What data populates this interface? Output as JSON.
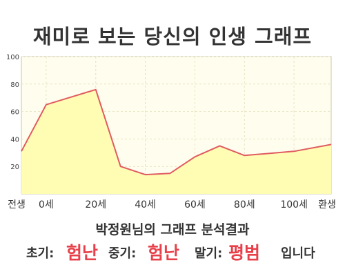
{
  "title": "재미로 보는 당신의 인생 그래프",
  "chart_data": {
    "type": "area",
    "x": [
      -10,
      0,
      20,
      30,
      40,
      50,
      60,
      70,
      80,
      100,
      115
    ],
    "y": [
      31,
      65,
      76,
      20,
      14,
      15,
      27,
      35,
      28,
      31,
      36
    ],
    "x_ticks": [
      {
        "x": -10,
        "label": "전생"
      },
      {
        "x": 0,
        "label": "0세"
      },
      {
        "x": 20,
        "label": "20세"
      },
      {
        "x": 40,
        "label": "40세"
      },
      {
        "x": 60,
        "label": "60세"
      },
      {
        "x": 80,
        "label": "80세"
      },
      {
        "x": 100,
        "label": "100세"
      },
      {
        "x": 115,
        "label": "환생"
      }
    ],
    "y_ticks": [
      20,
      40,
      60,
      80,
      100
    ],
    "ylim": [
      0,
      100
    ],
    "grid": true,
    "colors": {
      "line": "#e05b60",
      "fill": "#fffcb4",
      "plot_bg": "#fffdee",
      "grid": "#e6e2c4"
    }
  },
  "result": {
    "heading": "박정원님의 그래프 분석결과",
    "early_label": "초기:",
    "early_value": "험난",
    "middle_label": "중기:",
    "middle_value": "험난",
    "late_label": "말기:",
    "late_value": "평범",
    "ending": "입니다"
  }
}
